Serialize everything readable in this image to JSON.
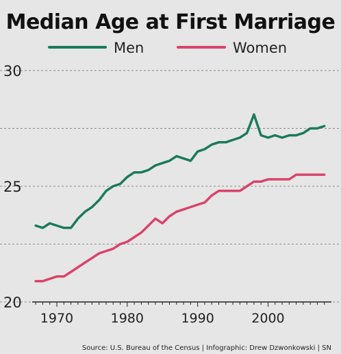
{
  "chart_data": {
    "type": "line",
    "title": "Median Age at First Marriage",
    "source": "Source: U.S. Bureau of the Census | Infographic: Drew Dzwonkowski | SN",
    "x_ticks": [
      "1970",
      "1980",
      "1990",
      "2000"
    ],
    "y_ticks": [
      "30",
      "25",
      "20"
    ],
    "xlim": [
      1966.5,
      2009
    ],
    "ylim": [
      20,
      30
    ],
    "grid": "horizontal dashed",
    "legend_position": "top",
    "series": [
      {
        "name": "Men",
        "color": "#1a7a5a",
        "x": [
          1967,
          1968,
          1969,
          1970,
          1971,
          1972,
          1973,
          1974,
          1975,
          1976,
          1977,
          1978,
          1979,
          1980,
          1981,
          1982,
          1983,
          1984,
          1985,
          1986,
          1987,
          1988,
          1989,
          1990,
          1991,
          1992,
          1993,
          1994,
          1995,
          1996,
          1997,
          1998,
          1999,
          2000,
          2001,
          2002,
          2003,
          2004,
          2005,
          2006,
          2007,
          2008
        ],
        "values": [
          23.3,
          23.2,
          23.4,
          23.3,
          23.2,
          23.2,
          23.6,
          23.9,
          24.1,
          24.4,
          24.8,
          25.0,
          25.1,
          25.4,
          25.6,
          25.6,
          25.7,
          25.9,
          26.0,
          26.1,
          26.3,
          26.2,
          26.1,
          26.5,
          26.6,
          26.8,
          26.9,
          26.9,
          27.0,
          27.1,
          27.3,
          28.1,
          27.2,
          27.1,
          27.2,
          27.1,
          27.2,
          27.2,
          27.3,
          27.5,
          27.5,
          27.6
        ]
      },
      {
        "name": "Women",
        "color": "#d9436a",
        "x": [
          1967,
          1968,
          1969,
          1970,
          1971,
          1972,
          1973,
          1974,
          1975,
          1976,
          1977,
          1978,
          1979,
          1980,
          1981,
          1982,
          1983,
          1984,
          1985,
          1986,
          1987,
          1988,
          1989,
          1990,
          1991,
          1992,
          1993,
          1994,
          1995,
          1996,
          1997,
          1998,
          1999,
          2000,
          2001,
          2002,
          2003,
          2004,
          2005,
          2006,
          2007,
          2008
        ],
        "values": [
          20.9,
          20.9,
          21.0,
          21.1,
          21.1,
          21.3,
          21.5,
          21.7,
          21.9,
          22.1,
          22.2,
          22.3,
          22.5,
          22.6,
          22.8,
          23.0,
          23.3,
          23.6,
          23.4,
          23.7,
          23.9,
          24.0,
          24.1,
          24.2,
          24.3,
          24.6,
          24.8,
          24.8,
          24.8,
          24.8,
          25.0,
          25.2,
          25.2,
          25.3,
          25.3,
          25.3,
          25.3,
          25.5,
          25.5,
          25.5,
          25.5,
          25.5
        ]
      }
    ]
  }
}
